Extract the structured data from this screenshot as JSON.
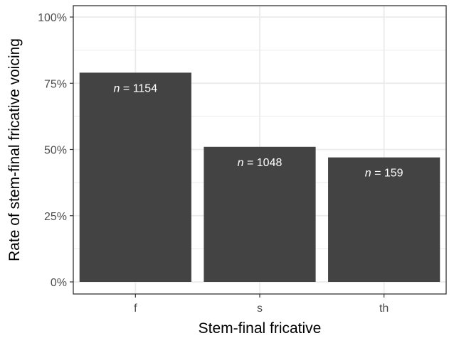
{
  "chart_data": {
    "type": "bar",
    "categories": [
      "f",
      "s",
      "th"
    ],
    "values": [
      79,
      51,
      47
    ],
    "bar_labels": [
      {
        "prefix": "n",
        "text": " = 1154"
      },
      {
        "prefix": "n",
        "text": " = 1048"
      },
      {
        "prefix": "n",
        "text": " = 159"
      }
    ],
    "xlabel": "Stem-final fricative",
    "ylabel": "Rate of stem-final fricative voicing",
    "ylim": [
      0,
      100
    ],
    "yticks": [
      0,
      25,
      50,
      75,
      100
    ],
    "ytick_labels": [
      "0%",
      "25%",
      "50%",
      "75%",
      "100%"
    ],
    "grid": true,
    "colors": {
      "bar": "#434343",
      "panel_border": "#333333",
      "grid": "#ebebeb"
    }
  }
}
